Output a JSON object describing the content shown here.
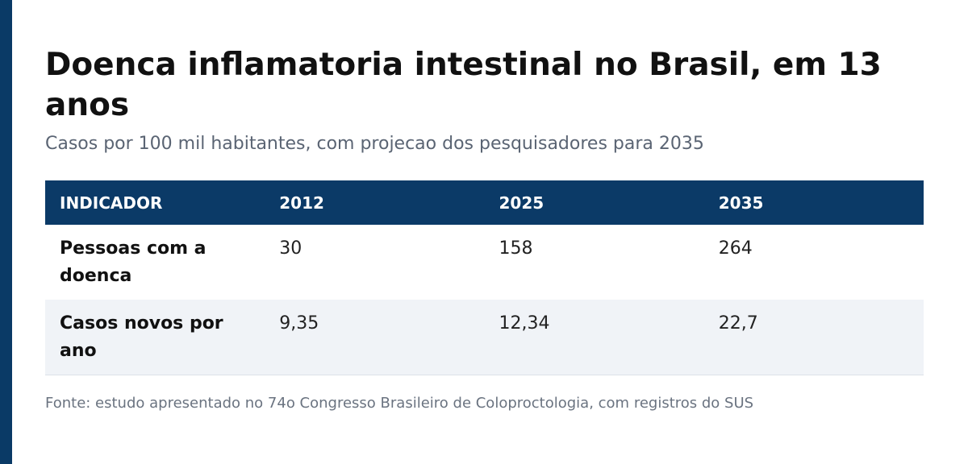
{
  "header": {
    "title": "Doenca inflamatoria intestinal no Brasil, em 13 anos",
    "subtitle": "Casos por 100 mil habitantes, com projecao dos pesquisadores para 2035"
  },
  "table": {
    "columns": [
      "INDICADOR",
      "2012",
      "2025",
      "2035"
    ],
    "rows": [
      [
        "Pessoas com a doenca",
        "30",
        "158",
        "264"
      ],
      [
        "Casos novos por ano",
        "9,35",
        "12,34",
        "22,7"
      ]
    ]
  },
  "footer": {
    "source": "Fonte: estudo apresentado no 74o Congresso Brasileiro de Coloproctologia, com registros do SUS"
  }
}
